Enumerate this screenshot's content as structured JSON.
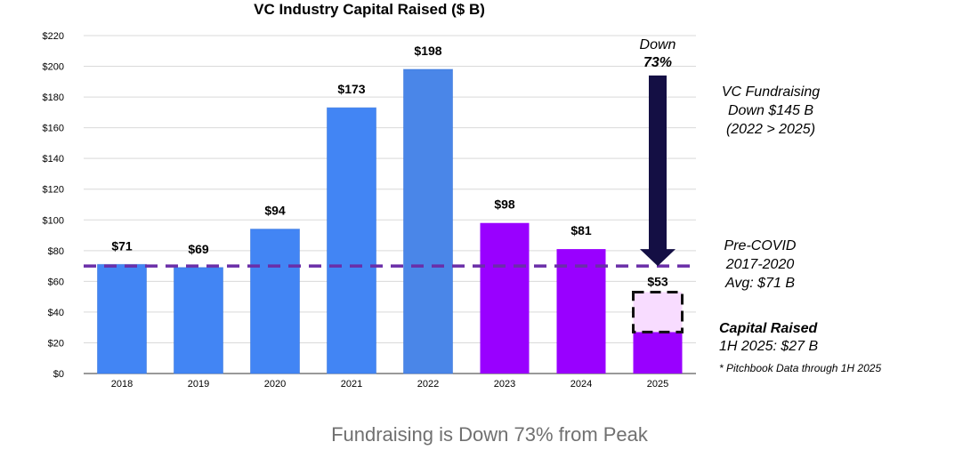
{
  "chart_data": {
    "type": "bar",
    "title": "VC Industry Capital Raised ($ B)",
    "categories": [
      "2018",
      "2019",
      "2020",
      "2021",
      "2022",
      "2023",
      "2024",
      "2025"
    ],
    "values": [
      71,
      69,
      94,
      173,
      198,
      98,
      81,
      53
    ],
    "value_labels": [
      "$71",
      "$69",
      "$94",
      "$173",
      "$198",
      "$98",
      "$81",
      "$53"
    ],
    "bar_colors": [
      "#4285f4",
      "#4285f4",
      "#4285f4",
      "#4285f4",
      "#4a86e8",
      "#9900ff",
      "#9900ff",
      "#9900ff"
    ],
    "partial_2025": {
      "actual_value": 27,
      "projected_value": 53,
      "actual_color": "#9900ff",
      "projected_color": "#f8dcff"
    },
    "ylim": [
      0,
      220
    ],
    "yticks": [
      0,
      20,
      40,
      60,
      80,
      100,
      120,
      140,
      160,
      180,
      200,
      220
    ],
    "ytick_labels": [
      "$0",
      "$20",
      "$40",
      "$60",
      "$80",
      "$100",
      "$120",
      "$140",
      "$160",
      "$180",
      "$200",
      "$220"
    ],
    "grid": true,
    "reference_line": {
      "value": 70,
      "color": "#6a2ea8"
    },
    "arrow": {
      "from_value": 194,
      "to_value": 70,
      "color": "#140f44"
    },
    "annotations": {
      "down_line1": "Down",
      "down_line2": "73%",
      "vc_fundraising": [
        "VC Fundraising",
        "Down  $145 B",
        "(2022 > 2025)"
      ],
      "pre_covid": [
        "Pre-COVID",
        "2017-2020",
        "Avg: $71 B"
      ],
      "capital_raised_title": "Capital Raised",
      "capital_raised_value": "1H 2025: $27 B",
      "footnote": "* Pitchbook Data through 1H 2025"
    }
  },
  "caption": "Fundraising is Down 73% from Peak"
}
